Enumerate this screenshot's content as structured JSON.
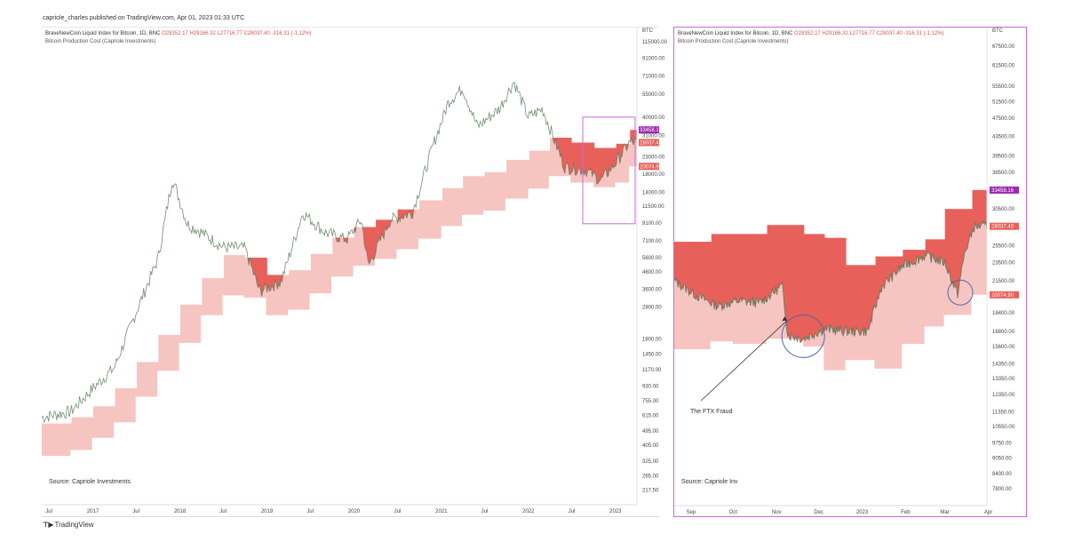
{
  "header": {
    "text": "capriole_charles published on TradingView.com, Apr 01, 2023 01:33 UTC"
  },
  "footer": {
    "logo_text": "TradingView"
  },
  "colors": {
    "dark_band": "#e8605a",
    "light_band": "#f6c5c2",
    "price": "#5a7a5a",
    "panel_border": "#c86bd6",
    "circle": "#5566aa"
  },
  "left": {
    "legend": {
      "sym": "BraveNewCoin Liquid Index for Bitcoin, 1D, BNC",
      "ohlc": "O28352.17 H29166.32 L27716.77 C28037.40 -316.31 (-1.12%)",
      "indicator": "Bitcoin Production Cost (Capriole Investments)"
    },
    "source": "Source: Capriole Investments",
    "y_currency": "BTC"
  },
  "right": {
    "legend": {
      "sym": "BraveNewCoin Liquid Index for Bitcoin, 1D, BNC",
      "ohlc": "O28352.17 H29166.32 L27716.77 C28037.40 -316.31 (-1.12%)",
      "indicator": "Bitcoin Production Cost (Capriole Investments)"
    },
    "source": "Source: Capriole Inv",
    "annotation": "The FTX Fraud",
    "y_currency": "BTC"
  },
  "chart_data": [
    {
      "type": "line",
      "scale": "log",
      "y_currency": "BTC",
      "x_ticks": [
        "Jul",
        "2017",
        "Jul",
        "2018",
        "Jul",
        "2019",
        "Jul",
        "2020",
        "Jul",
        "2021",
        "Jul",
        "2022",
        "Jul",
        "2023"
      ],
      "y_ticks": [
        115000,
        91000,
        71000,
        55000,
        40000,
        31000,
        23000,
        18000,
        14000,
        11500,
        9100,
        7100,
        5600,
        4600,
        3600,
        2800,
        1800,
        1450,
        1170,
        930,
        755,
        615,
        495,
        405,
        325,
        265,
        217.5
      ],
      "y_tick_labels": [
        "115000.00",
        "91000.00",
        "71000.00",
        "55000.00",
        "40000.00",
        "31000.00",
        "23000.00",
        "18000.00",
        "14000.00",
        "11500.00",
        "9100.00",
        "7100.00",
        "5600.00",
        "4600.00",
        "3600.00",
        "2800.00",
        "1800.00",
        "1450.00",
        "1170.00",
        "930.00",
        "755.00",
        "615.00",
        "495.00",
        "405.00",
        "325.00",
        "265.00",
        "217.50"
      ],
      "price_labels": [
        {
          "text": "33458.16",
          "color": "#9c27b0"
        },
        {
          "text": "28037.40",
          "color": "#e8605a"
        },
        {
          "text": "20074.90",
          "color": "#e8605a"
        }
      ],
      "series": [
        {
          "name": "BraveNewCoin Liquid Index for Bitcoin",
          "dates": [
            "2016-06",
            "2016-10",
            "2017-01",
            "2017-04",
            "2017-07",
            "2017-10",
            "2017-12",
            "2018-02",
            "2018-04",
            "2018-07",
            "2018-10",
            "2018-12",
            "2019-03",
            "2019-06",
            "2019-09",
            "2019-12",
            "2020-02",
            "2020-03",
            "2020-06",
            "2020-09",
            "2020-12",
            "2021-02",
            "2021-04",
            "2021-06",
            "2021-09",
            "2021-11",
            "2022-01",
            "2022-03",
            "2022-06",
            "2022-09",
            "2022-11",
            "2023-01",
            "2023-03"
          ],
          "values": [
            600,
            650,
            900,
            1200,
            2600,
            5500,
            17000,
            9000,
            8000,
            6500,
            6400,
            3500,
            4000,
            10500,
            8000,
            7200,
            9500,
            5000,
            9500,
            10500,
            28000,
            50000,
            60000,
            35000,
            45000,
            66000,
            40000,
            45000,
            20000,
            19000,
            16500,
            21000,
            28037
          ]
        },
        {
          "name": "Bitcoin Production Cost (Capriole Investments) upper",
          "dates": [
            "2016-06",
            "2016-10",
            "2017-01",
            "2017-04",
            "2017-07",
            "2017-10",
            "2018-01",
            "2018-04",
            "2018-07",
            "2018-10",
            "2019-01",
            "2019-04",
            "2019-07",
            "2019-10",
            "2020-01",
            "2020-04",
            "2020-07",
            "2020-10",
            "2021-01",
            "2021-04",
            "2021-07",
            "2021-10",
            "2022-01",
            "2022-04",
            "2022-07",
            "2022-10",
            "2023-01",
            "2023-03"
          ],
          "values": [
            550,
            600,
            700,
            900,
            1300,
            1900,
            2900,
            4200,
            5800,
            5600,
            4400,
            4700,
            5900,
            7400,
            8600,
            9500,
            11000,
            12500,
            14800,
            17500,
            18500,
            22000,
            25000,
            30000,
            28000,
            26000,
            27500,
            33458
          ]
        },
        {
          "name": "Bitcoin Production Cost (Capriole Investments) lower",
          "dates": [
            "2016-06",
            "2016-10",
            "2017-01",
            "2017-04",
            "2017-07",
            "2017-10",
            "2018-01",
            "2018-04",
            "2018-07",
            "2018-10",
            "2019-01",
            "2019-04",
            "2019-07",
            "2019-10",
            "2020-01",
            "2020-04",
            "2020-07",
            "2020-10",
            "2021-01",
            "2021-04",
            "2021-07",
            "2021-10",
            "2022-01",
            "2022-04",
            "2022-07",
            "2022-10",
            "2023-01",
            "2023-03"
          ],
          "values": [
            350,
            380,
            450,
            560,
            800,
            1150,
            1700,
            2500,
            3300,
            3200,
            2500,
            2700,
            3400,
            4300,
            5000,
            5500,
            6300,
            7300,
            8700,
            10200,
            10800,
            12800,
            14700,
            17500,
            16000,
            15000,
            16000,
            20075
          ]
        }
      ]
    },
    {
      "type": "line",
      "scale": "log",
      "y_currency": "BTC",
      "x_ticks": [
        "Sep",
        "Oct",
        "Nov",
        "Dec",
        "2023",
        "Feb",
        "Mar",
        "Apr"
      ],
      "y_ticks": [
        67500,
        61500,
        55500,
        51500,
        47500,
        43500,
        39500,
        36500,
        33458.16,
        30500,
        28037.4,
        25500,
        23500,
        21500,
        20074.9,
        18400,
        16800,
        15600,
        14350,
        13350,
        12350,
        11350,
        10550,
        9750,
        9050,
        8400,
        7800
      ],
      "y_tick_labels": [
        "67500.00",
        "61500.00",
        "55500.00",
        "51500.00",
        "47500.00",
        "43500.00",
        "39500.00",
        "36500.00",
        "33458.16",
        "30500.00",
        "28037.40",
        "25500.00",
        "23500.00",
        "21500.00",
        "20074.90",
        "18400.00",
        "16800.00",
        "15600.00",
        "14350.00",
        "13350.00",
        "12350.00",
        "11350.00",
        "10550.00",
        "9750.00",
        "9050.00",
        "8400.00",
        "7800.00"
      ],
      "annotation": "The FTX Fraud",
      "series": [
        {
          "name": "BraveNewCoin Liquid Index for Bitcoin",
          "dates": [
            "2022-08-20",
            "2022-09-05",
            "2022-09-20",
            "2022-10-05",
            "2022-10-20",
            "2022-11-05",
            "2022-11-09",
            "2022-11-20",
            "2022-12-05",
            "2022-12-20",
            "2023-01-05",
            "2023-01-15",
            "2023-01-30",
            "2023-02-15",
            "2023-03-01",
            "2023-03-10",
            "2023-03-15",
            "2023-03-22",
            "2023-03-31"
          ],
          "values": [
            21500,
            20000,
            19000,
            19500,
            19300,
            21000,
            16500,
            16200,
            17000,
            16800,
            16800,
            20900,
            23100,
            24300,
            23500,
            20100,
            24500,
            28000,
            28037
          ]
        },
        {
          "name": "Bitcoin Production Cost (Capriole Investments) upper",
          "dates": [
            "2022-08-20",
            "2022-09-15",
            "2022-10-01",
            "2022-10-25",
            "2022-11-20",
            "2022-12-05",
            "2022-12-20",
            "2023-01-10",
            "2023-01-30",
            "2023-02-15",
            "2023-03-01",
            "2023-03-20",
            "2023-03-31"
          ],
          "values": [
            26000,
            27000,
            27000,
            28200,
            27000,
            26500,
            23200,
            24200,
            25000,
            26300,
            30500,
            33458,
            33458
          ]
        },
        {
          "name": "Bitcoin Production Cost (Capriole Investments) lower",
          "dates": [
            "2022-08-20",
            "2022-09-15",
            "2022-10-01",
            "2022-10-25",
            "2022-11-20",
            "2022-12-05",
            "2022-12-20",
            "2023-01-10",
            "2023-01-30",
            "2023-02-15",
            "2023-03-01",
            "2023-03-20",
            "2023-03-31"
          ],
          "values": [
            15400,
            16000,
            15800,
            16200,
            15600,
            13900,
            14600,
            14000,
            15800,
            17200,
            18200,
            20075,
            20075
          ]
        }
      ]
    }
  ]
}
